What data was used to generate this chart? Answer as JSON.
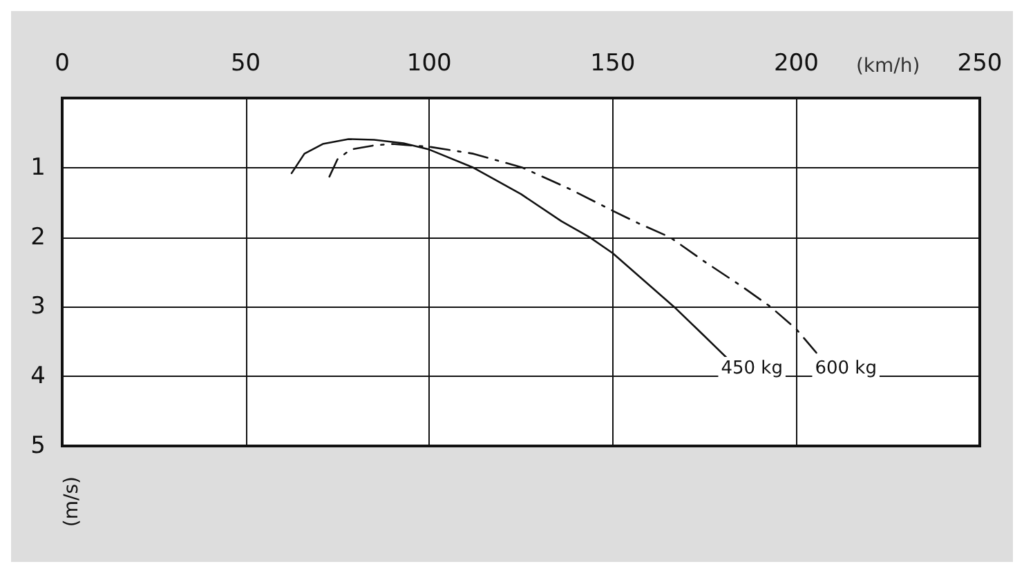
{
  "chart_data": {
    "type": "line",
    "xlabel": "(km/h)",
    "ylabel": "(m/s)",
    "xlim": [
      0,
      250
    ],
    "xticks": [
      0,
      50,
      100,
      150,
      200,
      250
    ],
    "ylim": [
      5,
      0
    ],
    "yticks": [
      1,
      2,
      3,
      4,
      5
    ],
    "grid": true,
    "legend": false,
    "marker": "none",
    "series": [
      {
        "name": "450 kg",
        "color": "#111111",
        "line_style": "solid",
        "x": [
          62.5,
          66,
          71,
          78,
          85,
          93,
          100,
          112,
          125,
          136,
          143.7,
          150,
          158,
          166.7,
          174,
          181
        ],
        "values": [
          1.08,
          0.8,
          0.66,
          0.59,
          0.6,
          0.65,
          0.74,
          1.0,
          1.38,
          1.77,
          2.0,
          2.23,
          2.6,
          3.0,
          3.37,
          3.73
        ]
      },
      {
        "name": "600 kg",
        "color": "#111111",
        "line_style": "dashed",
        "x": [
          72.8,
          75,
          78.6,
          85,
          90,
          100,
          112,
          125.4,
          138,
          150,
          157,
          165.6,
          175,
          185,
          193,
          200,
          206.6
        ],
        "values": [
          1.13,
          0.88,
          0.74,
          0.68,
          0.66,
          0.7,
          0.8,
          1.0,
          1.3,
          1.62,
          1.8,
          2.0,
          2.35,
          2.7,
          3.0,
          3.32,
          3.73
        ]
      }
    ]
  }
}
